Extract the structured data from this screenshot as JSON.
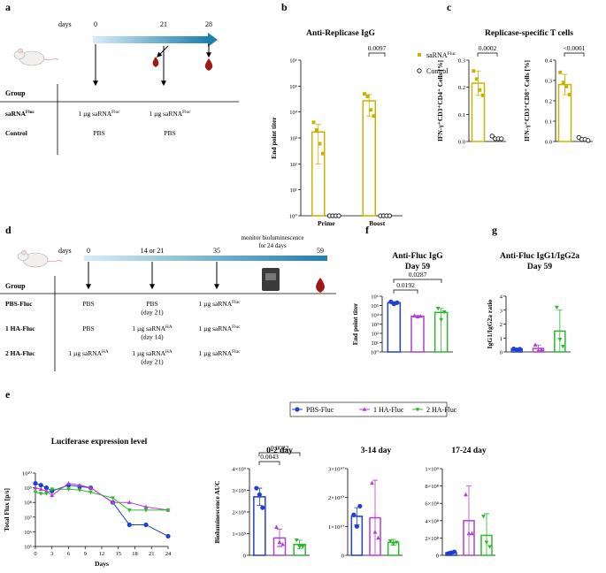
{
  "panel_labels": [
    "a",
    "b",
    "c",
    "d",
    "e",
    "f",
    "g"
  ],
  "panel_a": {
    "days_label": "days",
    "days": [
      "0",
      "21",
      "28"
    ],
    "group_header": "Group",
    "rows": [
      {
        "group": {
          "text": "saRNA",
          "sup": "Fluc"
        },
        "cells": [
          {
            "text": "1 µg saRNA",
            "sup": "Fluc"
          },
          {
            "text": "1 µg saRNA",
            "sup": "Fluc"
          }
        ]
      },
      {
        "group": "Control",
        "cells": [
          "PBS",
          "PBS"
        ]
      }
    ]
  },
  "panel_d": {
    "days_label": "days",
    "days": [
      "0",
      "14 or 21",
      "35",
      "59"
    ],
    "monitor": [
      "monitor bioluminescence",
      "for 24 days"
    ],
    "group_header": "Group",
    "rows": [
      {
        "group": "PBS-Fluc",
        "cells": [
          "PBS",
          {
            "text": "PBS",
            "note": "(day 21)"
          },
          {
            "text": "1 µg saRNA",
            "sup": "Fluc"
          }
        ]
      },
      {
        "group": "1 HA-Fluc",
        "cells": [
          "PBS",
          {
            "text": "1 µg saRNA",
            "sup": "HA",
            "note": "(day 14)"
          },
          {
            "text": "1 µg saRNA",
            "sup": "Fluc"
          }
        ]
      },
      {
        "group": "2 HA-Fluc",
        "cells": [
          {
            "text": "1 µg saRNA",
            "sup": "HA"
          },
          {
            "text": "1 µg saRNA",
            "sup": "HA",
            "note": "(day 21)"
          },
          {
            "text": "1 µg saRNA",
            "sup": "Fluc"
          }
        ]
      }
    ]
  },
  "chart_data": [
    {
      "type": "bar",
      "title": "Anti-Replicase IgG",
      "ylabel": "End point titer",
      "log": true,
      "ylim": [
        1,
        1000000
      ],
      "yticks": [
        {
          "value": 1,
          "label": "10⁰"
        },
        {
          "value": 10,
          "label": "10¹"
        },
        {
          "value": 100,
          "label": "10²"
        },
        {
          "value": 1000,
          "label": "10³"
        },
        {
          "value": 10000,
          "label": "10⁴"
        },
        {
          "value": 100000,
          "label": "10⁵"
        },
        {
          "value": 1000000,
          "label": "10⁶"
        }
      ],
      "categories": [
        "Prime",
        "Boost"
      ],
      "grouped": true,
      "legend": "right",
      "series": [
        {
          "name": {
            "text": "saRNA",
            "sup": "Fluc"
          },
          "color": "#c8b400",
          "style": "bar",
          "marker": "square",
          "values": [
            1700,
            27000
          ],
          "errors": [
            1600,
            20000
          ],
          "points": [
            [
              4000,
              2000,
              600,
              250
            ],
            [
              50000,
              40000,
              12000,
              7000
            ]
          ]
        },
        {
          "name": "Control",
          "color": "#000000",
          "style": "none",
          "marker": "circle-open",
          "values": [
            1,
            1
          ],
          "points": [
            [
              1,
              1,
              1,
              1
            ],
            [
              1,
              1,
              1,
              1
            ]
          ]
        }
      ],
      "p_values": [
        "0.0097"
      ]
    },
    {
      "type": "bar",
      "title": "Replicase-specific T cells",
      "ylabel": "IFN-γ⁺CD3⁺CD4⁺ Cells [%]",
      "ylim": [
        0,
        0.3
      ],
      "yticks": [
        {
          "value": 0,
          "label": "0.0"
        },
        0.1,
        0.2,
        0.3
      ],
      "categories": [
        null,
        null
      ],
      "grouped": false,
      "series": [
        {
          "color": "#c8b400",
          "style": "bar",
          "marker": "square",
          "values": [
            0.215,
            null
          ],
          "errors": [
            0.045,
            null
          ],
          "points": [
            [
              0.26,
              0.23,
              0.19,
              0.17
            ],
            null
          ]
        },
        {
          "color": "#000000",
          "style": "none",
          "marker": "circle-open",
          "values": [
            null,
            0.012
          ],
          "points": [
            null,
            [
              0.02,
              0.01,
              0.01,
              0.01
            ]
          ]
        }
      ],
      "p_values": [
        "0.0002"
      ]
    },
    {
      "type": "bar",
      "ylabel": "IFN-γ⁺CD3⁺CD8⁺ Cells [%]",
      "ylim": [
        0,
        0.4
      ],
      "yticks": [
        {
          "value": 0,
          "label": "0.0"
        },
        0.1,
        0.2,
        0.3,
        0.4
      ],
      "categories": [
        null,
        null
      ],
      "grouped": false,
      "series": [
        {
          "color": "#c8b400",
          "style": "bar",
          "marker": "square",
          "values": [
            0.28,
            null
          ],
          "errors": [
            0.05,
            null
          ],
          "points": [
            [
              0.34,
              0.29,
              0.27,
              0.23
            ],
            null
          ]
        },
        {
          "color": "#000000",
          "style": "none",
          "marker": "circle-open",
          "values": [
            null,
            0.012
          ],
          "points": [
            null,
            [
              0.02,
              0.01,
              0.01,
              0.005
            ]
          ]
        }
      ],
      "p_values": [
        "<0.0001"
      ]
    },
    {
      "type": "bar",
      "title": "Anti-Fluc IgG",
      "subtitle": "Day 59",
      "ylabel": "End point titer",
      "log": true,
      "ylim": [
        1,
        1000000
      ],
      "yticks": [
        {
          "value": 1,
          "label": "10⁰"
        },
        {
          "value": 10,
          "label": "10¹"
        },
        {
          "value": 100,
          "label": "10²"
        },
        {
          "value": 1000,
          "label": "10³"
        },
        {
          "value": 10000,
          "label": "10⁴"
        },
        {
          "value": 100000,
          "label": "10⁵"
        },
        {
          "value": 1000000,
          "label": "10⁶"
        }
      ],
      "categories": [
        null,
        null,
        null
      ],
      "colors": [
        "#1f3fd6",
        "#b040d0",
        "#2db82d"
      ],
      "markers": [
        "circle",
        "triangle",
        "triangle-down"
      ],
      "values": [
        200000,
        7000,
        18000
      ],
      "errors": [
        60000,
        1000,
        30000
      ],
      "points": [
        [
          250000,
          150000,
          200000
        ],
        [
          8000,
          6000,
          7000
        ],
        [
          50000,
          3000,
          20000
        ]
      ],
      "p_values": [
        "0.0192",
        "0.0287"
      ]
    },
    {
      "type": "bar",
      "title": "Anti-Fluc IgG1/IgG2a",
      "subtitle": "Day 59",
      "ylabel": "IgG1/IgG2a ratio",
      "ylim": [
        0,
        4
      ],
      "yticks": [
        0,
        1,
        2,
        3,
        4
      ],
      "categories": [
        null,
        null,
        null
      ],
      "colors": [
        "#1f3fd6",
        "#b040d0",
        "#2db82d"
      ],
      "markers": [
        "circle",
        "triangle",
        "triangle-down"
      ],
      "values": [
        0.2,
        0.25,
        1.5
      ],
      "errors": [
        0.05,
        0.25,
        1.5
      ],
      "points": [
        [
          0.22,
          0.15,
          0.2
        ],
        [
          0.5,
          0.1,
          0.15
        ],
        [
          3.2,
          0.9,
          0.4
        ]
      ]
    },
    {
      "type": "line",
      "title": "Luciferase expression level",
      "ylabel": "Total Flux [p/s]",
      "xlabel": "Days",
      "log": true,
      "legend": "top",
      "ylim": [
        100000,
        10000000000
      ],
      "yticks": [
        {
          "value": 100000,
          "label": "10⁵"
        },
        {
          "value": 1000000,
          "label": "10⁶"
        },
        {
          "value": 10000000,
          "label": "10⁷"
        },
        {
          "value": 100000000,
          "label": "10⁸"
        },
        {
          "value": 1000000000,
          "label": "10⁹"
        },
        {
          "value": 10000000000,
          "label": "10¹⁰"
        }
      ],
      "xlim": [
        0,
        24
      ],
      "xticks": [
        0,
        3,
        6,
        9,
        12,
        15,
        18,
        21,
        24
      ],
      "x": [
        0,
        1,
        2,
        3,
        6,
        8,
        10,
        14,
        17,
        20,
        24
      ],
      "series": [
        {
          "name": "PBS-Fluc",
          "color": "#1f3fd6",
          "marker": "circle",
          "values": [
            2000000000,
            1500000000,
            1000000000,
            600000000,
            1500000000,
            1200000000,
            1000000000,
            100000000,
            3000000,
            3000000,
            500000
          ]
        },
        {
          "name": "1 HA-Fluc",
          "color": "#b040d0",
          "marker": "triangle",
          "values": [
            1000000000,
            800000000,
            600000000,
            300000000,
            2000000000,
            1500000000,
            1000000000,
            100000000,
            100000000,
            50000000,
            30000000
          ]
        },
        {
          "name": "2 HA-Fluc",
          "color": "#2db82d",
          "marker": "triangle-down",
          "values": [
            500000000,
            400000000,
            400000000,
            800000000,
            800000000,
            700000000,
            500000000,
            200000000,
            30000000,
            30000000,
            30000000
          ]
        }
      ]
    },
    {
      "type": "bar",
      "title": "0-2 day",
      "ylabel": "Bioluminescence AUC",
      "ylim": [
        0,
        4000000000
      ],
      "yticks": [
        0,
        {
          "value": 1000000000,
          "label": "1×10⁹"
        },
        {
          "value": 2000000000,
          "label": "2×10⁹"
        },
        {
          "value": 3000000000,
          "label": "3×10⁹"
        },
        {
          "value": 4000000000,
          "label": "4×10⁹"
        }
      ],
      "categories": [
        null,
        null,
        null
      ],
      "colors": [
        "#1f3fd6",
        "#b040d0",
        "#2db82d"
      ],
      "markers": [
        "circle",
        "triangle",
        "triangle-down"
      ],
      "values": [
        2700000000,
        800000000,
        500000000
      ],
      "errors": [
        400000000,
        400000000,
        200000000
      ],
      "points": [
        [
          3100000000,
          2800000000,
          2200000000
        ],
        [
          1300000000,
          600000000,
          500000000
        ],
        [
          700000000,
          400000000,
          400000000
        ]
      ],
      "p_values": [
        "0.0043",
        "0.0022"
      ]
    },
    {
      "type": "bar",
      "title": "3-14 day",
      "ylim": [
        0,
        30000000000
      ],
      "yticks": [
        0,
        {
          "value": 10000000000,
          "label": "1×10¹⁰"
        },
        {
          "value": 20000000000,
          "label": "2×10¹⁰"
        },
        {
          "value": 30000000000,
          "label": "3×10¹⁰"
        }
      ],
      "categories": [
        null,
        null,
        null
      ],
      "colors": [
        "#1f3fd6",
        "#b040d0",
        "#2db82d"
      ],
      "markers": [
        "circle",
        "triangle",
        "triangle-down"
      ],
      "values": [
        13500000000,
        13000000000,
        4500000000
      ],
      "errors": [
        3000000000,
        13000000000,
        1000000000
      ],
      "points": [
        [
          14000000000,
          10000000000,
          17000000000
        ],
        [
          25000000000,
          8000000000,
          6000000000
        ],
        [
          5000000000,
          4000000000,
          4500000000
        ]
      ]
    },
    {
      "type": "bar",
      "title": "17-24 day",
      "ylim": [
        0,
        1000000000
      ],
      "yticks": [
        0,
        {
          "value": 200000000,
          "label": "2×10⁸"
        },
        {
          "value": 400000000,
          "label": "4×10⁸"
        },
        {
          "value": 600000000,
          "label": "6×10⁸"
        },
        {
          "value": 800000000,
          "label": "8×10⁸"
        },
        {
          "value": 1000000000,
          "label": "1×10⁹"
        }
      ],
      "categories": [
        null,
        null,
        null
      ],
      "colors": [
        "#1f3fd6",
        "#b040d0",
        "#2db82d"
      ],
      "markers": [
        "circle",
        "triangle",
        "triangle-down"
      ],
      "values": [
        30000000,
        400000000,
        230000000
      ],
      "errors": [
        15000000,
        400000000,
        250000000
      ],
      "points": [
        [
          20000000,
          30000000,
          40000000
        ],
        [
          700000000,
          250000000,
          250000000
        ],
        [
          450000000,
          150000000,
          100000000
        ]
      ]
    }
  ]
}
